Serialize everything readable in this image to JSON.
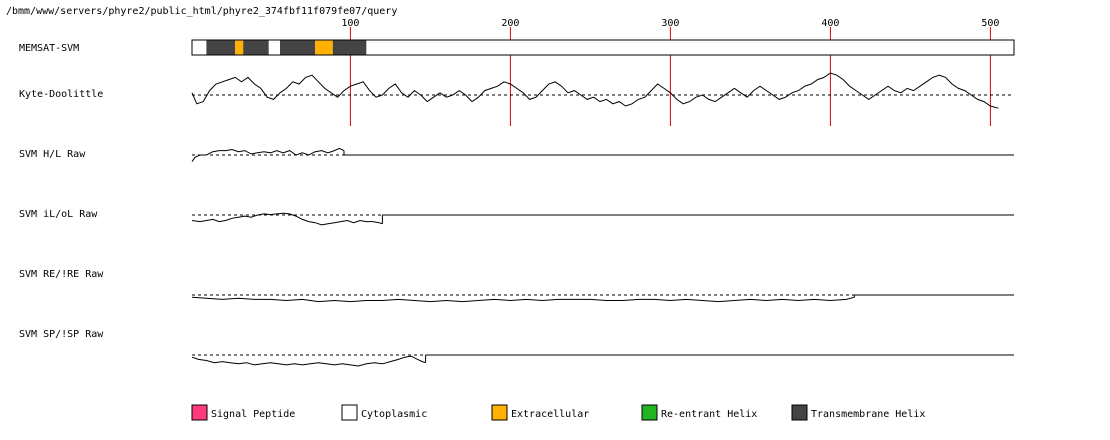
{
  "path_text": "/bmm/www/servers/phyre2/public_html/phyre2_374fbf11f079fe07/query",
  "colors": {
    "signal": "#ff3b7e",
    "cytoplasmic": "#ffffff",
    "extracellular": "#ffb000",
    "reentrant": "#22b522",
    "transmembrane": "#444444",
    "marker": "#dd0000",
    "trace": "#000000"
  },
  "chart_data": {
    "type": "line",
    "sequence_length": 512,
    "x_ticks": [
      100,
      200,
      300,
      400,
      500
    ],
    "x_tick_labels": [
      "100",
      "200",
      "300",
      "400",
      "500"
    ],
    "memsat": {
      "label": "MEMSAT-SVM",
      "segments": [
        {
          "start": 1,
          "end": 10,
          "class": "cytoplasmic"
        },
        {
          "start": 10,
          "end": 28,
          "class": "transmembrane"
        },
        {
          "start": 28,
          "end": 33,
          "class": "extracellular"
        },
        {
          "start": 33,
          "end": 49,
          "class": "transmembrane"
        },
        {
          "start": 49,
          "end": 56,
          "class": "cytoplasmic"
        },
        {
          "start": 56,
          "end": 78,
          "class": "transmembrane"
        },
        {
          "start": 78,
          "end": 89,
          "class": "extracellular"
        },
        {
          "start": 89,
          "end": 110,
          "class": "transmembrane"
        },
        {
          "start": 110,
          "end": 512,
          "class": "cytoplasmic"
        }
      ]
    },
    "tracks": [
      {
        "label": "Kyte-Doolittle",
        "end": 505,
        "tail": "none",
        "points": [
          [
            1,
            0.1
          ],
          [
            4,
            -0.4
          ],
          [
            8,
            -0.3
          ],
          [
            12,
            0.2
          ],
          [
            16,
            0.5
          ],
          [
            20,
            0.6
          ],
          [
            24,
            0.7
          ],
          [
            28,
            0.8
          ],
          [
            32,
            0.6
          ],
          [
            36,
            0.8
          ],
          [
            40,
            0.5
          ],
          [
            44,
            0.3
          ],
          [
            48,
            -0.1
          ],
          [
            52,
            -0.2
          ],
          [
            56,
            0.1
          ],
          [
            60,
            0.3
          ],
          [
            64,
            0.6
          ],
          [
            68,
            0.5
          ],
          [
            72,
            0.8
          ],
          [
            76,
            0.9
          ],
          [
            80,
            0.6
          ],
          [
            84,
            0.3
          ],
          [
            88,
            0.1
          ],
          [
            92,
            -0.1
          ],
          [
            96,
            0.2
          ],
          [
            100,
            0.4
          ],
          [
            104,
            0.5
          ],
          [
            108,
            0.6
          ],
          [
            112,
            0.2
          ],
          [
            116,
            -0.1
          ],
          [
            120,
            0.0
          ],
          [
            124,
            0.3
          ],
          [
            128,
            0.5
          ],
          [
            132,
            0.1
          ],
          [
            136,
            -0.1
          ],
          [
            140,
            0.2
          ],
          [
            144,
            0.0
          ],
          [
            148,
            -0.3
          ],
          [
            152,
            -0.1
          ],
          [
            156,
            0.1
          ],
          [
            160,
            -0.1
          ],
          [
            164,
            0.0
          ],
          [
            168,
            0.2
          ],
          [
            172,
            0.0
          ],
          [
            176,
            -0.3
          ],
          [
            180,
            -0.1
          ],
          [
            184,
            0.2
          ],
          [
            188,
            0.3
          ],
          [
            192,
            0.4
          ],
          [
            196,
            0.6
          ],
          [
            200,
            0.5
          ],
          [
            204,
            0.3
          ],
          [
            208,
            0.1
          ],
          [
            212,
            -0.2
          ],
          [
            216,
            -0.1
          ],
          [
            220,
            0.2
          ],
          [
            224,
            0.5
          ],
          [
            228,
            0.6
          ],
          [
            232,
            0.4
          ],
          [
            236,
            0.1
          ],
          [
            240,
            0.2
          ],
          [
            244,
            0.0
          ],
          [
            248,
            -0.2
          ],
          [
            252,
            -0.1
          ],
          [
            256,
            -0.3
          ],
          [
            260,
            -0.2
          ],
          [
            264,
            -0.4
          ],
          [
            268,
            -0.3
          ],
          [
            272,
            -0.5
          ],
          [
            276,
            -0.4
          ],
          [
            280,
            -0.2
          ],
          [
            284,
            -0.1
          ],
          [
            288,
            0.2
          ],
          [
            292,
            0.5
          ],
          [
            296,
            0.3
          ],
          [
            300,
            0.1
          ],
          [
            304,
            -0.2
          ],
          [
            308,
            -0.4
          ],
          [
            312,
            -0.3
          ],
          [
            316,
            -0.1
          ],
          [
            320,
            0.0
          ],
          [
            324,
            -0.2
          ],
          [
            328,
            -0.3
          ],
          [
            332,
            -0.1
          ],
          [
            336,
            0.1
          ],
          [
            340,
            0.3
          ],
          [
            344,
            0.1
          ],
          [
            348,
            -0.1
          ],
          [
            352,
            0.2
          ],
          [
            356,
            0.4
          ],
          [
            360,
            0.2
          ],
          [
            364,
            0.0
          ],
          [
            368,
            -0.2
          ],
          [
            372,
            -0.1
          ],
          [
            376,
            0.1
          ],
          [
            380,
            0.2
          ],
          [
            384,
            0.4
          ],
          [
            388,
            0.5
          ],
          [
            392,
            0.7
          ],
          [
            396,
            0.8
          ],
          [
            400,
            1.0
          ],
          [
            404,
            0.9
          ],
          [
            408,
            0.7
          ],
          [
            412,
            0.4
          ],
          [
            416,
            0.2
          ],
          [
            420,
            0.0
          ],
          [
            424,
            -0.2
          ],
          [
            428,
            0.0
          ],
          [
            432,
            0.2
          ],
          [
            436,
            0.4
          ],
          [
            440,
            0.2
          ],
          [
            444,
            0.1
          ],
          [
            448,
            0.3
          ],
          [
            452,
            0.2
          ],
          [
            456,
            0.4
          ],
          [
            460,
            0.6
          ],
          [
            464,
            0.8
          ],
          [
            468,
            0.9
          ],
          [
            472,
            0.8
          ],
          [
            476,
            0.5
          ],
          [
            480,
            0.3
          ],
          [
            484,
            0.2
          ],
          [
            488,
            0.0
          ],
          [
            492,
            -0.2
          ],
          [
            496,
            -0.3
          ],
          [
            500,
            -0.5
          ],
          [
            505,
            -0.6
          ]
        ]
      },
      {
        "label": "SVM H/L Raw",
        "end": 96,
        "tail": "flat",
        "points": [
          [
            1,
            -0.3
          ],
          [
            3,
            -0.1
          ],
          [
            6,
            0.0
          ],
          [
            10,
            0.0
          ],
          [
            14,
            0.15
          ],
          [
            18,
            0.2
          ],
          [
            22,
            0.2
          ],
          [
            26,
            0.25
          ],
          [
            30,
            0.15
          ],
          [
            34,
            0.2
          ],
          [
            38,
            0.05
          ],
          [
            42,
            0.1
          ],
          [
            46,
            0.15
          ],
          [
            50,
            0.1
          ],
          [
            54,
            0.2
          ],
          [
            58,
            0.1
          ],
          [
            62,
            0.2
          ],
          [
            66,
            0.0
          ],
          [
            70,
            0.1
          ],
          [
            74,
            0.0
          ],
          [
            78,
            0.15
          ],
          [
            82,
            0.2
          ],
          [
            86,
            0.1
          ],
          [
            90,
            0.2
          ],
          [
            93,
            0.3
          ],
          [
            96,
            0.2
          ]
        ]
      },
      {
        "label": "SVM iL/oL Raw",
        "end": 120,
        "tail": "flat",
        "points": [
          [
            1,
            -0.25
          ],
          [
            6,
            -0.3
          ],
          [
            10,
            -0.25
          ],
          [
            14,
            -0.2
          ],
          [
            18,
            -0.3
          ],
          [
            22,
            -0.25
          ],
          [
            26,
            -0.15
          ],
          [
            30,
            -0.1
          ],
          [
            34,
            -0.05
          ],
          [
            38,
            -0.1
          ],
          [
            42,
            0.0
          ],
          [
            46,
            0.05
          ],
          [
            50,
            0.02
          ],
          [
            54,
            0.05
          ],
          [
            58,
            0.08
          ],
          [
            62,
            0.05
          ],
          [
            66,
            -0.05
          ],
          [
            70,
            -0.2
          ],
          [
            74,
            -0.3
          ],
          [
            78,
            -0.35
          ],
          [
            82,
            -0.45
          ],
          [
            86,
            -0.4
          ],
          [
            90,
            -0.35
          ],
          [
            94,
            -0.3
          ],
          [
            98,
            -0.25
          ],
          [
            102,
            -0.35
          ],
          [
            106,
            -0.25
          ],
          [
            110,
            -0.3
          ],
          [
            114,
            -0.3
          ],
          [
            118,
            -0.35
          ],
          [
            120,
            -0.4
          ]
        ]
      },
      {
        "label": "SVM RE/!RE Raw",
        "end": 415,
        "tail": "flat",
        "points": [
          [
            1,
            -0.1
          ],
          [
            10,
            -0.15
          ],
          [
            20,
            -0.2
          ],
          [
            30,
            -0.15
          ],
          [
            40,
            -0.2
          ],
          [
            50,
            -0.2
          ],
          [
            60,
            -0.25
          ],
          [
            70,
            -0.2
          ],
          [
            80,
            -0.3
          ],
          [
            90,
            -0.25
          ],
          [
            100,
            -0.3
          ],
          [
            110,
            -0.25
          ],
          [
            120,
            -0.25
          ],
          [
            130,
            -0.2
          ],
          [
            140,
            -0.25
          ],
          [
            150,
            -0.3
          ],
          [
            160,
            -0.25
          ],
          [
            170,
            -0.3
          ],
          [
            180,
            -0.25
          ],
          [
            190,
            -0.2
          ],
          [
            200,
            -0.25
          ],
          [
            210,
            -0.2
          ],
          [
            220,
            -0.25
          ],
          [
            230,
            -0.2
          ],
          [
            240,
            -0.2
          ],
          [
            250,
            -0.2
          ],
          [
            260,
            -0.25
          ],
          [
            270,
            -0.25
          ],
          [
            280,
            -0.2
          ],
          [
            290,
            -0.2
          ],
          [
            300,
            -0.25
          ],
          [
            310,
            -0.2
          ],
          [
            320,
            -0.25
          ],
          [
            330,
            -0.3
          ],
          [
            340,
            -0.25
          ],
          [
            350,
            -0.2
          ],
          [
            360,
            -0.25
          ],
          [
            370,
            -0.2
          ],
          [
            380,
            -0.25
          ],
          [
            390,
            -0.2
          ],
          [
            400,
            -0.25
          ],
          [
            410,
            -0.2
          ],
          [
            415,
            -0.1
          ]
        ]
      },
      {
        "label": "SVM SP/!SP Raw",
        "end": 147,
        "tail": "flat",
        "points": [
          [
            1,
            -0.1
          ],
          [
            5,
            -0.2
          ],
          [
            10,
            -0.25
          ],
          [
            15,
            -0.35
          ],
          [
            20,
            -0.3
          ],
          [
            25,
            -0.35
          ],
          [
            30,
            -0.4
          ],
          [
            35,
            -0.35
          ],
          [
            40,
            -0.45
          ],
          [
            45,
            -0.4
          ],
          [
            50,
            -0.35
          ],
          [
            55,
            -0.4
          ],
          [
            60,
            -0.45
          ],
          [
            65,
            -0.4
          ],
          [
            70,
            -0.45
          ],
          [
            75,
            -0.4
          ],
          [
            80,
            -0.35
          ],
          [
            85,
            -0.4
          ],
          [
            90,
            -0.45
          ],
          [
            95,
            -0.4
          ],
          [
            100,
            -0.45
          ],
          [
            105,
            -0.5
          ],
          [
            110,
            -0.4
          ],
          [
            115,
            -0.35
          ],
          [
            120,
            -0.4
          ],
          [
            125,
            -0.3
          ],
          [
            130,
            -0.2
          ],
          [
            134,
            -0.1
          ],
          [
            138,
            -0.05
          ],
          [
            142,
            -0.2
          ],
          [
            145,
            -0.3
          ],
          [
            147,
            -0.35
          ]
        ]
      }
    ],
    "legend": [
      {
        "key": "signal",
        "label": "Signal Peptide"
      },
      {
        "key": "cytoplasmic",
        "label": "Cytoplasmic"
      },
      {
        "key": "extracellular",
        "label": "Extracellular"
      },
      {
        "key": "reentrant",
        "label": "Re-entrant Helix"
      },
      {
        "key": "transmembrane",
        "label": "Transmembrane Helix"
      }
    ]
  }
}
